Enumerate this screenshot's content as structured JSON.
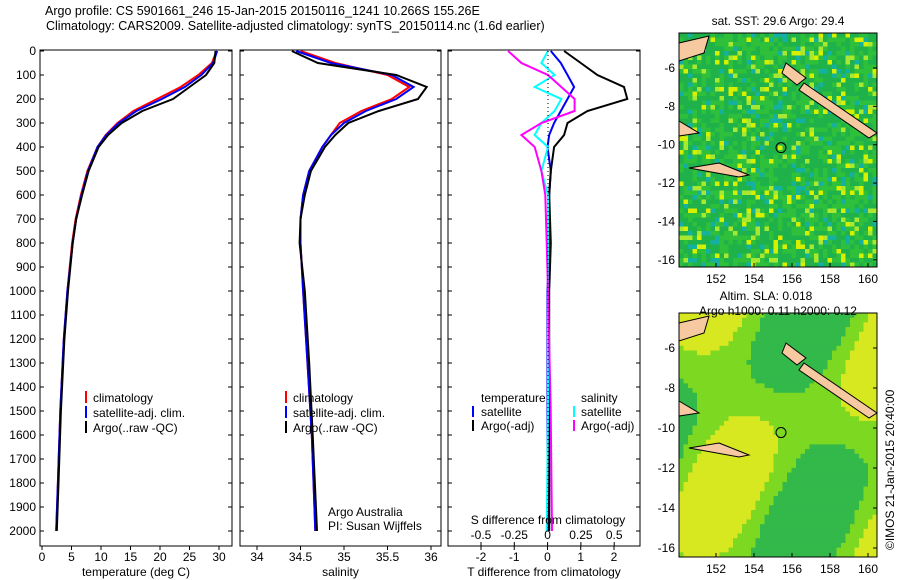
{
  "title": {
    "line1": "Argo profile: CS 5901661_246 15-Jan-2015 20150116_1241 10.266S 155.26E",
    "line2": "Climatology: CARS2009. Satellite-adjusted climatology: synTS_20150114.nc (1.6d earlier)"
  },
  "colors": {
    "climatology": "#ff0000",
    "satellite": "#0000ff",
    "argo": "#000000",
    "sal_sat": "#00ffff",
    "sal_argo": "#ff00ff"
  },
  "depth_ticks": [
    0,
    100,
    200,
    300,
    400,
    500,
    600,
    700,
    800,
    900,
    1000,
    1100,
    1200,
    1300,
    1400,
    1500,
    1600,
    1700,
    1800,
    1900,
    2000
  ],
  "chart_data": [
    {
      "type": "line",
      "id": "temp",
      "xlabel": "temperature (deg C)",
      "xticks": [
        0,
        5,
        10,
        15,
        20,
        25,
        30
      ],
      "xlim": [
        -0.3,
        31
      ],
      "ylim": [
        2050,
        0
      ],
      "legend": [
        "climatology",
        "satellite-adj. clim.",
        "Argo(..raw -QC)"
      ],
      "depth": [
        0,
        50,
        100,
        150,
        200,
        250,
        300,
        350,
        400,
        500,
        600,
        700,
        800,
        1000,
        1200,
        1500,
        1800,
        2000
      ],
      "series": [
        {
          "name": "climatology",
          "values": [
            29.6,
            28.8,
            26.5,
            23.5,
            19.5,
            15.5,
            12.8,
            10.8,
            9.4,
            7.7,
            6.6,
            5.7,
            5.1,
            4.3,
            3.7,
            3.1,
            2.7,
            2.4
          ]
        },
        {
          "name": "satellite-adj. clim.",
          "values": [
            29.7,
            29.0,
            27.0,
            24.2,
            20.3,
            16.0,
            13.0,
            10.9,
            9.4,
            7.8,
            6.7,
            5.8,
            5.2,
            4.3,
            3.7,
            3.1,
            2.7,
            2.4
          ]
        },
        {
          "name": "Argo(..raw -QC)",
          "values": [
            29.4,
            29.2,
            27.8,
            25.0,
            22.2,
            17.0,
            13.5,
            11.2,
            9.6,
            7.9,
            6.8,
            5.8,
            5.2,
            4.4,
            3.8,
            3.2,
            2.8,
            2.5
          ]
        }
      ]
    },
    {
      "type": "line",
      "id": "sal",
      "xlabel": "salinity",
      "xticks": [
        34,
        34.5,
        35,
        35.5,
        36
      ],
      "xlim": [
        33.8,
        36.1
      ],
      "ylim": [
        2050,
        0
      ],
      "legend": [
        "climatology",
        "satellite-adj. clim.",
        "Argo(..raw -QC)"
      ],
      "annotation": [
        "Argo Australia",
        "PI: Susan Wijffels"
      ],
      "depth": [
        0,
        50,
        100,
        150,
        200,
        250,
        300,
        350,
        400,
        500,
        600,
        700,
        800,
        1000,
        1300,
        1600,
        2000
      ],
      "series": [
        {
          "name": "climatology",
          "values": [
            34.5,
            34.9,
            35.5,
            35.75,
            35.55,
            35.2,
            34.95,
            34.85,
            34.75,
            34.6,
            34.53,
            34.5,
            34.5,
            34.53,
            34.58,
            34.63,
            34.67
          ]
        },
        {
          "name": "satellite-adj. clim.",
          "values": [
            34.45,
            34.85,
            35.55,
            35.8,
            35.6,
            35.25,
            35.0,
            34.85,
            34.75,
            34.6,
            34.53,
            34.5,
            34.5,
            34.53,
            34.58,
            34.63,
            34.67
          ]
        },
        {
          "name": "Argo(..raw -QC)",
          "values": [
            34.4,
            34.7,
            35.6,
            35.95,
            35.85,
            35.4,
            35.05,
            34.9,
            34.78,
            34.62,
            34.55,
            34.5,
            34.49,
            34.55,
            34.6,
            34.64,
            34.69
          ]
        }
      ]
    },
    {
      "type": "line",
      "id": "diff",
      "xlabel": "T difference from climatology",
      "x2label": "S difference from climatology",
      "xticks": [
        -2,
        -1,
        0,
        1,
        2
      ],
      "x2ticks": [
        "-0.5",
        "-0.25",
        "0",
        "0.25",
        "0.5"
      ],
      "xlim": [
        -3,
        3
      ],
      "ylim": [
        2050,
        0
      ],
      "legend_t": [
        "temperature",
        "satellite",
        "Argo(-adj)"
      ],
      "legend_s": [
        "salinity",
        "satellite",
        "Argo(-adj)"
      ],
      "depth": [
        0,
        50,
        100,
        150,
        200,
        250,
        300,
        350,
        400,
        500,
        600,
        800,
        1000,
        1500,
        2000
      ],
      "series": [
        {
          "name": "T satellite",
          "values": [
            0.1,
            0.4,
            0.6,
            0.8,
            0.6,
            0.4,
            0.2,
            0.05,
            0.0,
            0.1,
            0.05,
            0.05,
            0.0,
            0.0,
            0.0
          ]
        },
        {
          "name": "T Argo(-adj)",
          "values": [
            0.5,
            1.0,
            1.5,
            2.3,
            2.4,
            1.2,
            0.6,
            0.5,
            0.2,
            0.1,
            0.05,
            0.1,
            0.05,
            0.05,
            0.05
          ]
        },
        {
          "name": "S satellite",
          "values": [
            0.0,
            -0.05,
            0.05,
            -0.1,
            0.1,
            0.05,
            -0.05,
            -0.1,
            0.0,
            -0.05,
            0.0,
            0.0,
            0.0,
            0.0,
            -0.01
          ]
        },
        {
          "name": "S Argo(-adj)",
          "values": [
            -0.3,
            -0.2,
            0.0,
            0.1,
            0.2,
            0.2,
            -0.05,
            -0.2,
            -0.1,
            -0.05,
            -0.02,
            -0.01,
            0.0,
            0.02,
            0.03
          ]
        }
      ]
    },
    {
      "type": "heatmap",
      "id": "sst",
      "title": "sat. SST: 29.6 Argo: 29.4",
      "xticks": [
        "152",
        "154",
        "156",
        "158",
        "160"
      ],
      "yticks": [
        "-6",
        "-8",
        "-10",
        "-12",
        "-14",
        "-16"
      ]
    },
    {
      "type": "heatmap",
      "id": "sla",
      "title1": "Altim. SLA: 0.018",
      "title2": "Argo h1000: 0.11 h2000: 0.12",
      "xticks": [
        "152",
        "154",
        "156",
        "158",
        "160"
      ],
      "yticks": [
        "-6",
        "-8",
        "-10",
        "-12",
        "-14",
        "-16"
      ],
      "credit": "©IMOS 21-Jan-2015 20:40:00"
    }
  ]
}
